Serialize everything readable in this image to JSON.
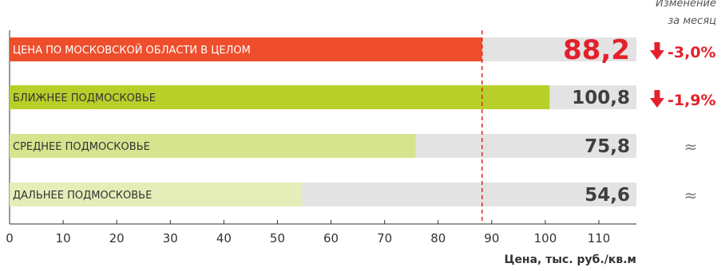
{
  "chart_data": {
    "type": "bar",
    "orientation": "horizontal",
    "categories": [
      "ЦЕНА ПО МОСКОВСКОЙ ОБЛАСТИ В ЦЕЛОМ",
      "БЛИЖНЕЕ ПОДМОСКОВЬЕ",
      "СРЕДНЕЕ ПОДМОСКОВЬЕ",
      "ДАЛЬНЕЕ ПОДМОСКОВЬЕ"
    ],
    "values": [
      88.2,
      100.8,
      75.8,
      54.6
    ],
    "value_labels": [
      "88,2",
      "100,8",
      "75,8",
      "54,6"
    ],
    "changes": [
      "-3,0%",
      "-1,9%",
      "≈",
      "≈"
    ],
    "change_header": [
      "Изменение",
      "за месяц"
    ],
    "reference_line": 88.2,
    "xlabel": "Цена, тыс. руб./кв.м",
    "xlim": [
      0,
      117
    ],
    "xticks": [
      0,
      10,
      20,
      30,
      40,
      50,
      60,
      70,
      80,
      90,
      100,
      110
    ],
    "colors": {
      "bars": [
        "#ee4e2c",
        "#b8cf2a",
        "#d6e48e",
        "#e5edb8"
      ],
      "track": "#e3e3e3",
      "highlight": "#e4202b",
      "value_text": "#3f3f3f",
      "axis": "#333333"
    }
  }
}
